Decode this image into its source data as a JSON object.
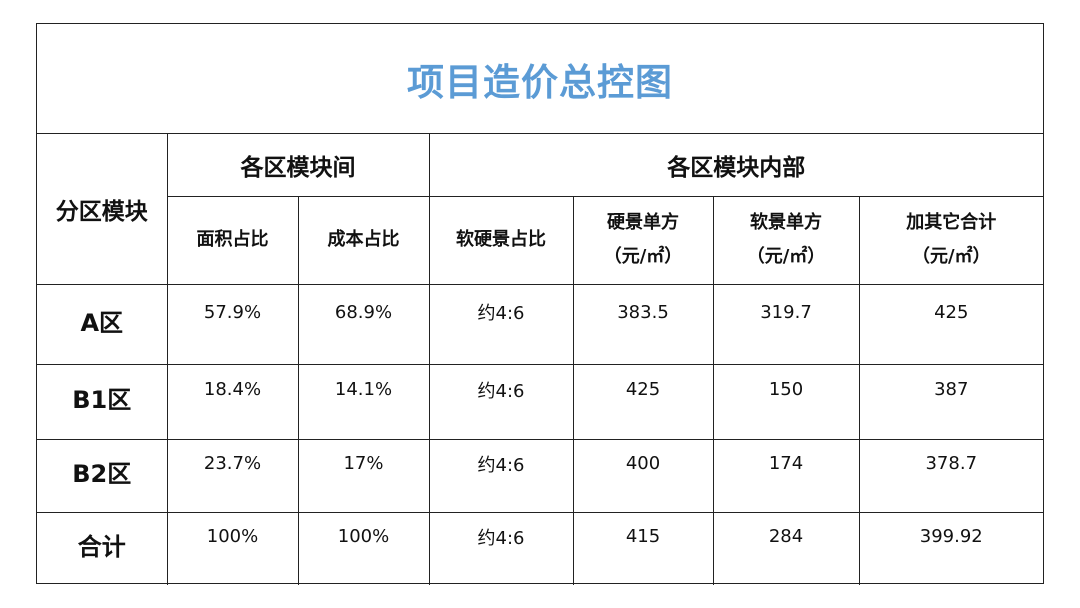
{
  "title": "项目造价总控图",
  "header": {
    "area": "分区模块",
    "group_between": "各区模块间",
    "group_inner": "各区模块内部",
    "col_area_ratio": "面积占比",
    "col_cost_ratio": "成本占比",
    "col_soft_hard_ratio": "软硬景占比",
    "col_hard_unit_line1": "硬景单方",
    "col_hard_unit_line2": "（元/㎡）",
    "col_soft_unit_line1": "软景单方",
    "col_soft_unit_line2": "（元/㎡）",
    "col_other_line1": "加其它合计",
    "col_other_line2": "（元/㎡）"
  },
  "rows": [
    {
      "area": "A区",
      "area_ratio": "57.9%",
      "cost_ratio": "68.9%",
      "soft_hard": "约4:6",
      "hard_unit": "383.5",
      "soft_unit": "319.7",
      "other_total": "425"
    },
    {
      "area": "B1区",
      "area_ratio": "18.4%",
      "cost_ratio": "14.1%",
      "soft_hard": "约4:6",
      "hard_unit": "425",
      "soft_unit": "150",
      "other_total": "387"
    },
    {
      "area": "B2区",
      "area_ratio": "23.7%",
      "cost_ratio": "17%",
      "soft_hard": "约4:6",
      "hard_unit": "400",
      "soft_unit": "174",
      "other_total": "378.7"
    },
    {
      "area": "合计",
      "area_ratio": "100%",
      "cost_ratio": "100%",
      "soft_hard": "约4:6",
      "hard_unit": "415",
      "soft_unit": "284",
      "other_total": "399.92"
    }
  ],
  "colors": {
    "title": "#5b9bd5",
    "border": "#222222"
  }
}
